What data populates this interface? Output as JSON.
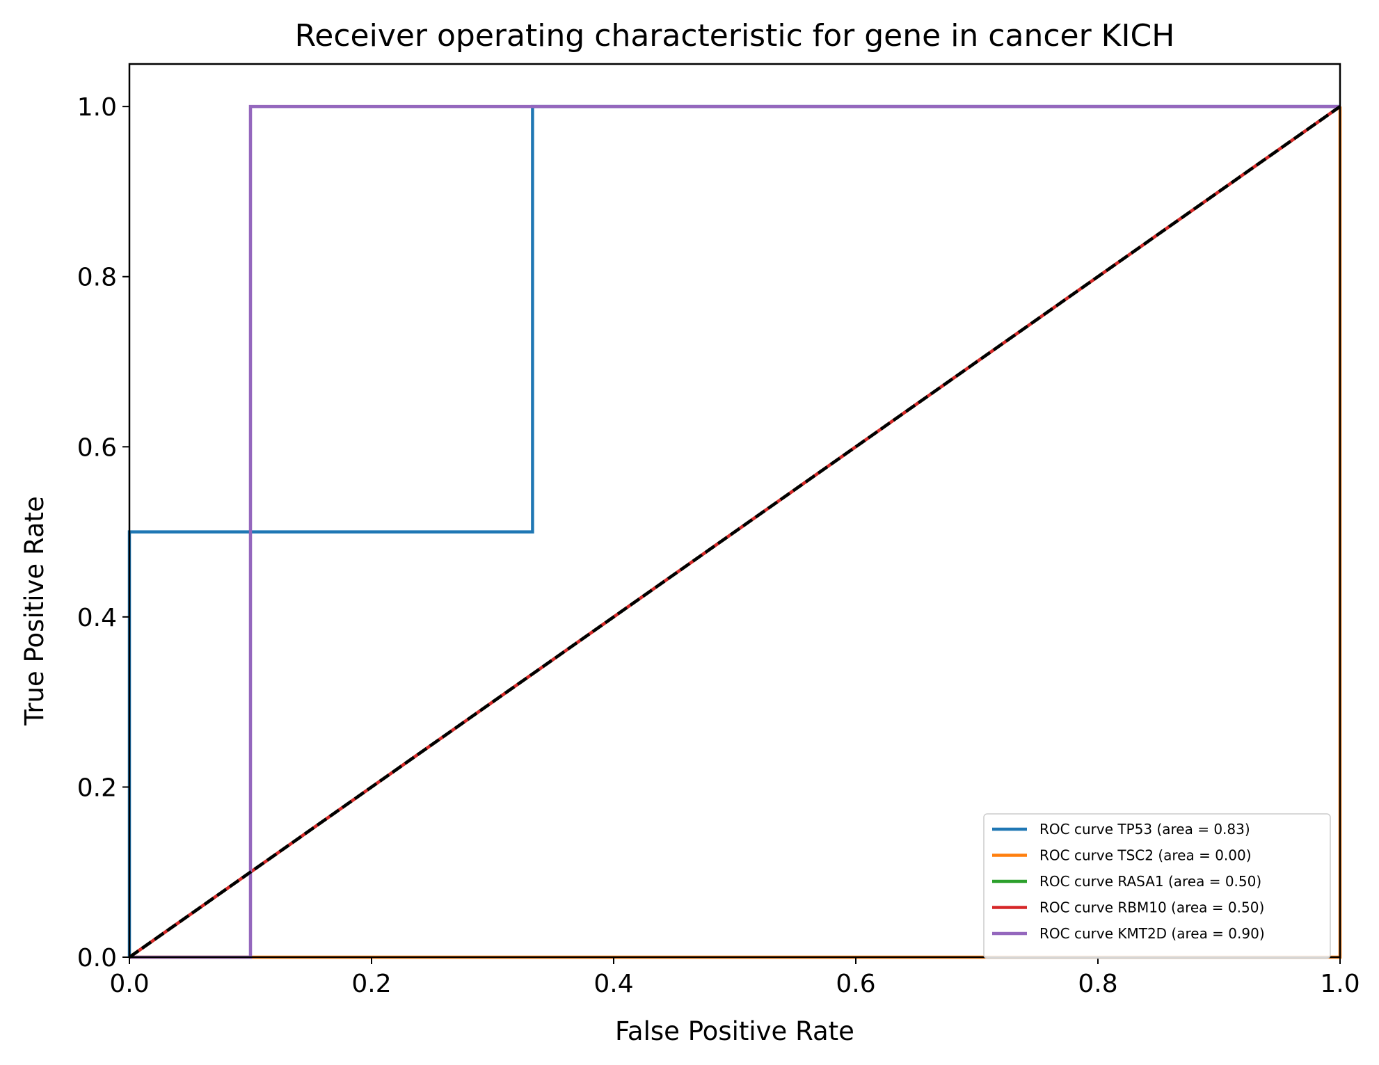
{
  "chart_data": {
    "type": "line",
    "title": "Receiver operating characteristic for gene in cancer KICH",
    "xlabel": "False Positive Rate",
    "ylabel": "True Positive Rate",
    "xlim": [
      0.0,
      1.0
    ],
    "ylim": [
      0.0,
      1.05
    ],
    "xticks": [
      "0.0",
      "0.2",
      "0.4",
      "0.6",
      "0.8",
      "1.0"
    ],
    "yticks": [
      "0.0",
      "0.2",
      "0.4",
      "0.6",
      "0.8",
      "1.0"
    ],
    "grid": false,
    "legend_position": "lower-right",
    "series": [
      {
        "name": "ROC curve TP53 (area = 0.83)",
        "color": "#1f77b4",
        "x": [
          0.0,
          0.0,
          0.333,
          0.333,
          1.0
        ],
        "y": [
          0.0,
          0.5,
          0.5,
          1.0,
          1.0
        ]
      },
      {
        "name": "ROC curve TSC2 (area = 0.00)",
        "color": "#ff7f0e",
        "x": [
          0.0,
          1.0,
          1.0
        ],
        "y": [
          0.0,
          0.0,
          1.0
        ]
      },
      {
        "name": "ROC curve RASA1 (area = 0.50)",
        "color": "#2ca02c",
        "x": [
          0.0,
          1.0
        ],
        "y": [
          0.0,
          1.0
        ]
      },
      {
        "name": "ROC curve RBM10 (area = 0.50)",
        "color": "#d62728",
        "x": [
          0.0,
          1.0
        ],
        "y": [
          0.0,
          1.0
        ]
      },
      {
        "name": "ROC curve KMT2D (area = 0.90)",
        "color": "#9467bd",
        "x": [
          0.0,
          0.1,
          0.1,
          1.0
        ],
        "y": [
          0.0,
          0.0,
          1.0,
          1.0
        ]
      }
    ],
    "reference_line": {
      "color": "#000000",
      "style": "dashed",
      "x": [
        0.0,
        1.0
      ],
      "y": [
        0.0,
        1.0
      ]
    }
  }
}
